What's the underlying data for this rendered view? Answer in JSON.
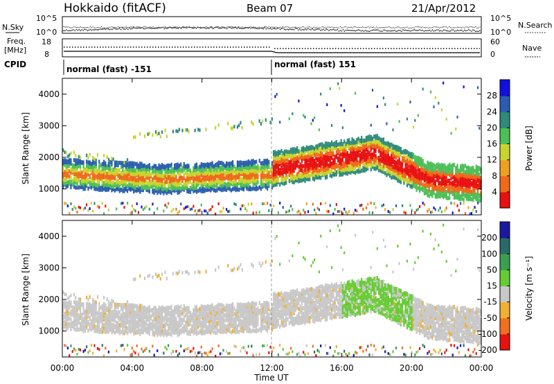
{
  "header": {
    "station": "Hokkaido (fitACF)",
    "beam": "Beam 07",
    "date": "21/Apr/2012"
  },
  "top_strips": {
    "nsky_label": "N.Sky",
    "nsearch_label": "N.Search",
    "noise_ticks_left": [
      "10^5",
      "10^0"
    ],
    "noise_ticks_right": [
      "10^5",
      "10^0"
    ],
    "freq_label_1": "Freq.",
    "freq_label_2": "[MHz]",
    "freq_ticks": [
      "18",
      "8"
    ],
    "nave_label": "Nave",
    "nave_ticks": [
      "60",
      "0"
    ],
    "cpid_label": "CPID",
    "cpid_segments": [
      "normal (fast) -151",
      "normal (fast) 151"
    ]
  },
  "chart_data": [
    {
      "type": "heatmap",
      "name": "power",
      "ylabel": "Slant Range [km]",
      "xlabel": "Time UT",
      "x_ticks": [
        "00:00",
        "04:00",
        "08:00",
        "12:00",
        "16:00",
        "20:00",
        "00:00"
      ],
      "y_ticks": [
        "1000",
        "2000",
        "3000",
        "4000"
      ],
      "ylim_km": [
        180,
        4500
      ],
      "colorbar_label": "Power [dB]",
      "colorbar_ticks": [
        "4",
        "8",
        "12",
        "16",
        "20",
        "24",
        "28"
      ],
      "colorbar_range": [
        0,
        32
      ],
      "colors": [
        "#1010e0",
        "#2a5db0",
        "#2e8a7a",
        "#4cbf57",
        "#c8d42c",
        "#f0a020",
        "#f06818",
        "#e81010"
      ]
    },
    {
      "type": "heatmap",
      "name": "velocity",
      "ylabel": "Slant Range [km]",
      "xlabel": "Time UT",
      "x_ticks": [
        "00:00",
        "04:00",
        "08:00",
        "12:00",
        "16:00",
        "20:00",
        "00:00"
      ],
      "y_ticks": [
        "1000",
        "2000",
        "3000",
        "4000"
      ],
      "ylim_km": [
        180,
        4500
      ],
      "colorbar_label": "Velocity [m s-1]",
      "colorbar_ticks": [
        "200",
        "100",
        "50",
        "15",
        "-15",
        "-50",
        "-100",
        "-200"
      ],
      "colorbar_range": [
        -250,
        250
      ],
      "colors": [
        "#1a1aa0",
        "#2a6a6a",
        "#3aa050",
        "#66cc33",
        "#c8c8c8",
        "#f0b030",
        "#f07020",
        "#e81010"
      ]
    }
  ],
  "time_label": "Time UT",
  "time_ticks": [
    "00:00",
    "04:00",
    "08:00",
    "12:00",
    "16:00",
    "20:00",
    "00:00"
  ],
  "y_ticks": [
    "1000",
    "2000",
    "3000",
    "4000"
  ],
  "ylabel": "Slant Range [km]",
  "power_cbar": {
    "label": "Power [dB]",
    "ticks": [
      "28",
      "24",
      "20",
      "16",
      "12",
      "8",
      "4"
    ]
  },
  "vel_cbar": {
    "label": "Velocity [m s⁻¹]",
    "ticks": [
      "200",
      "100",
      "50",
      "15",
      "-15",
      "-50",
      "-100",
      "-200"
    ]
  }
}
